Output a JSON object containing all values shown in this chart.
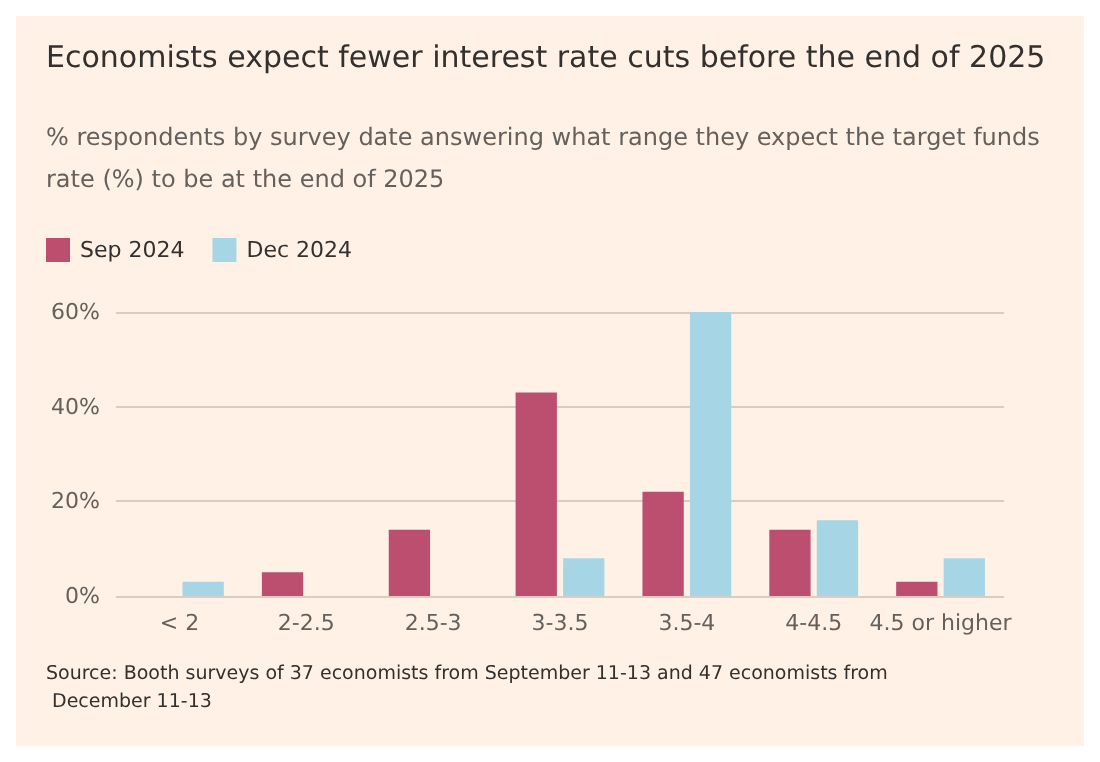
{
  "chart_data": {
    "type": "bar",
    "title": "Economists expect fewer interest rate cuts before the end of 2025",
    "subtitle": "% respondents by survey date answering what range they expect the target funds rate (%) to be at the end of 2025",
    "categories": [
      "< 2",
      "2-2.5",
      "2.5-3",
      "3-3.5",
      "3.5-4",
      "4-4.5",
      "4.5 or higher"
    ],
    "series": [
      {
        "name": "Sep 2024",
        "color": "#bc4e6f",
        "values": [
          0,
          5,
          14,
          43,
          22,
          14,
          3
        ]
      },
      {
        "name": "Dec 2024",
        "color": "#a6d6e5",
        "values": [
          3,
          0,
          0,
          8,
          60,
          16,
          8
        ]
      }
    ],
    "ylim": [
      0,
      60
    ],
    "yticks": [
      {
        "value": 0,
        "label": "0%"
      },
      {
        "value": 20,
        "label": "20%"
      },
      {
        "value": 40,
        "label": "40%"
      },
      {
        "value": 60,
        "label": "60%"
      }
    ],
    "grid": "y",
    "legend": "top left",
    "annotations": [
      "Source: Booth surveys of 37 economists from September 11-13 and 47 economists from December 11-13"
    ]
  }
}
